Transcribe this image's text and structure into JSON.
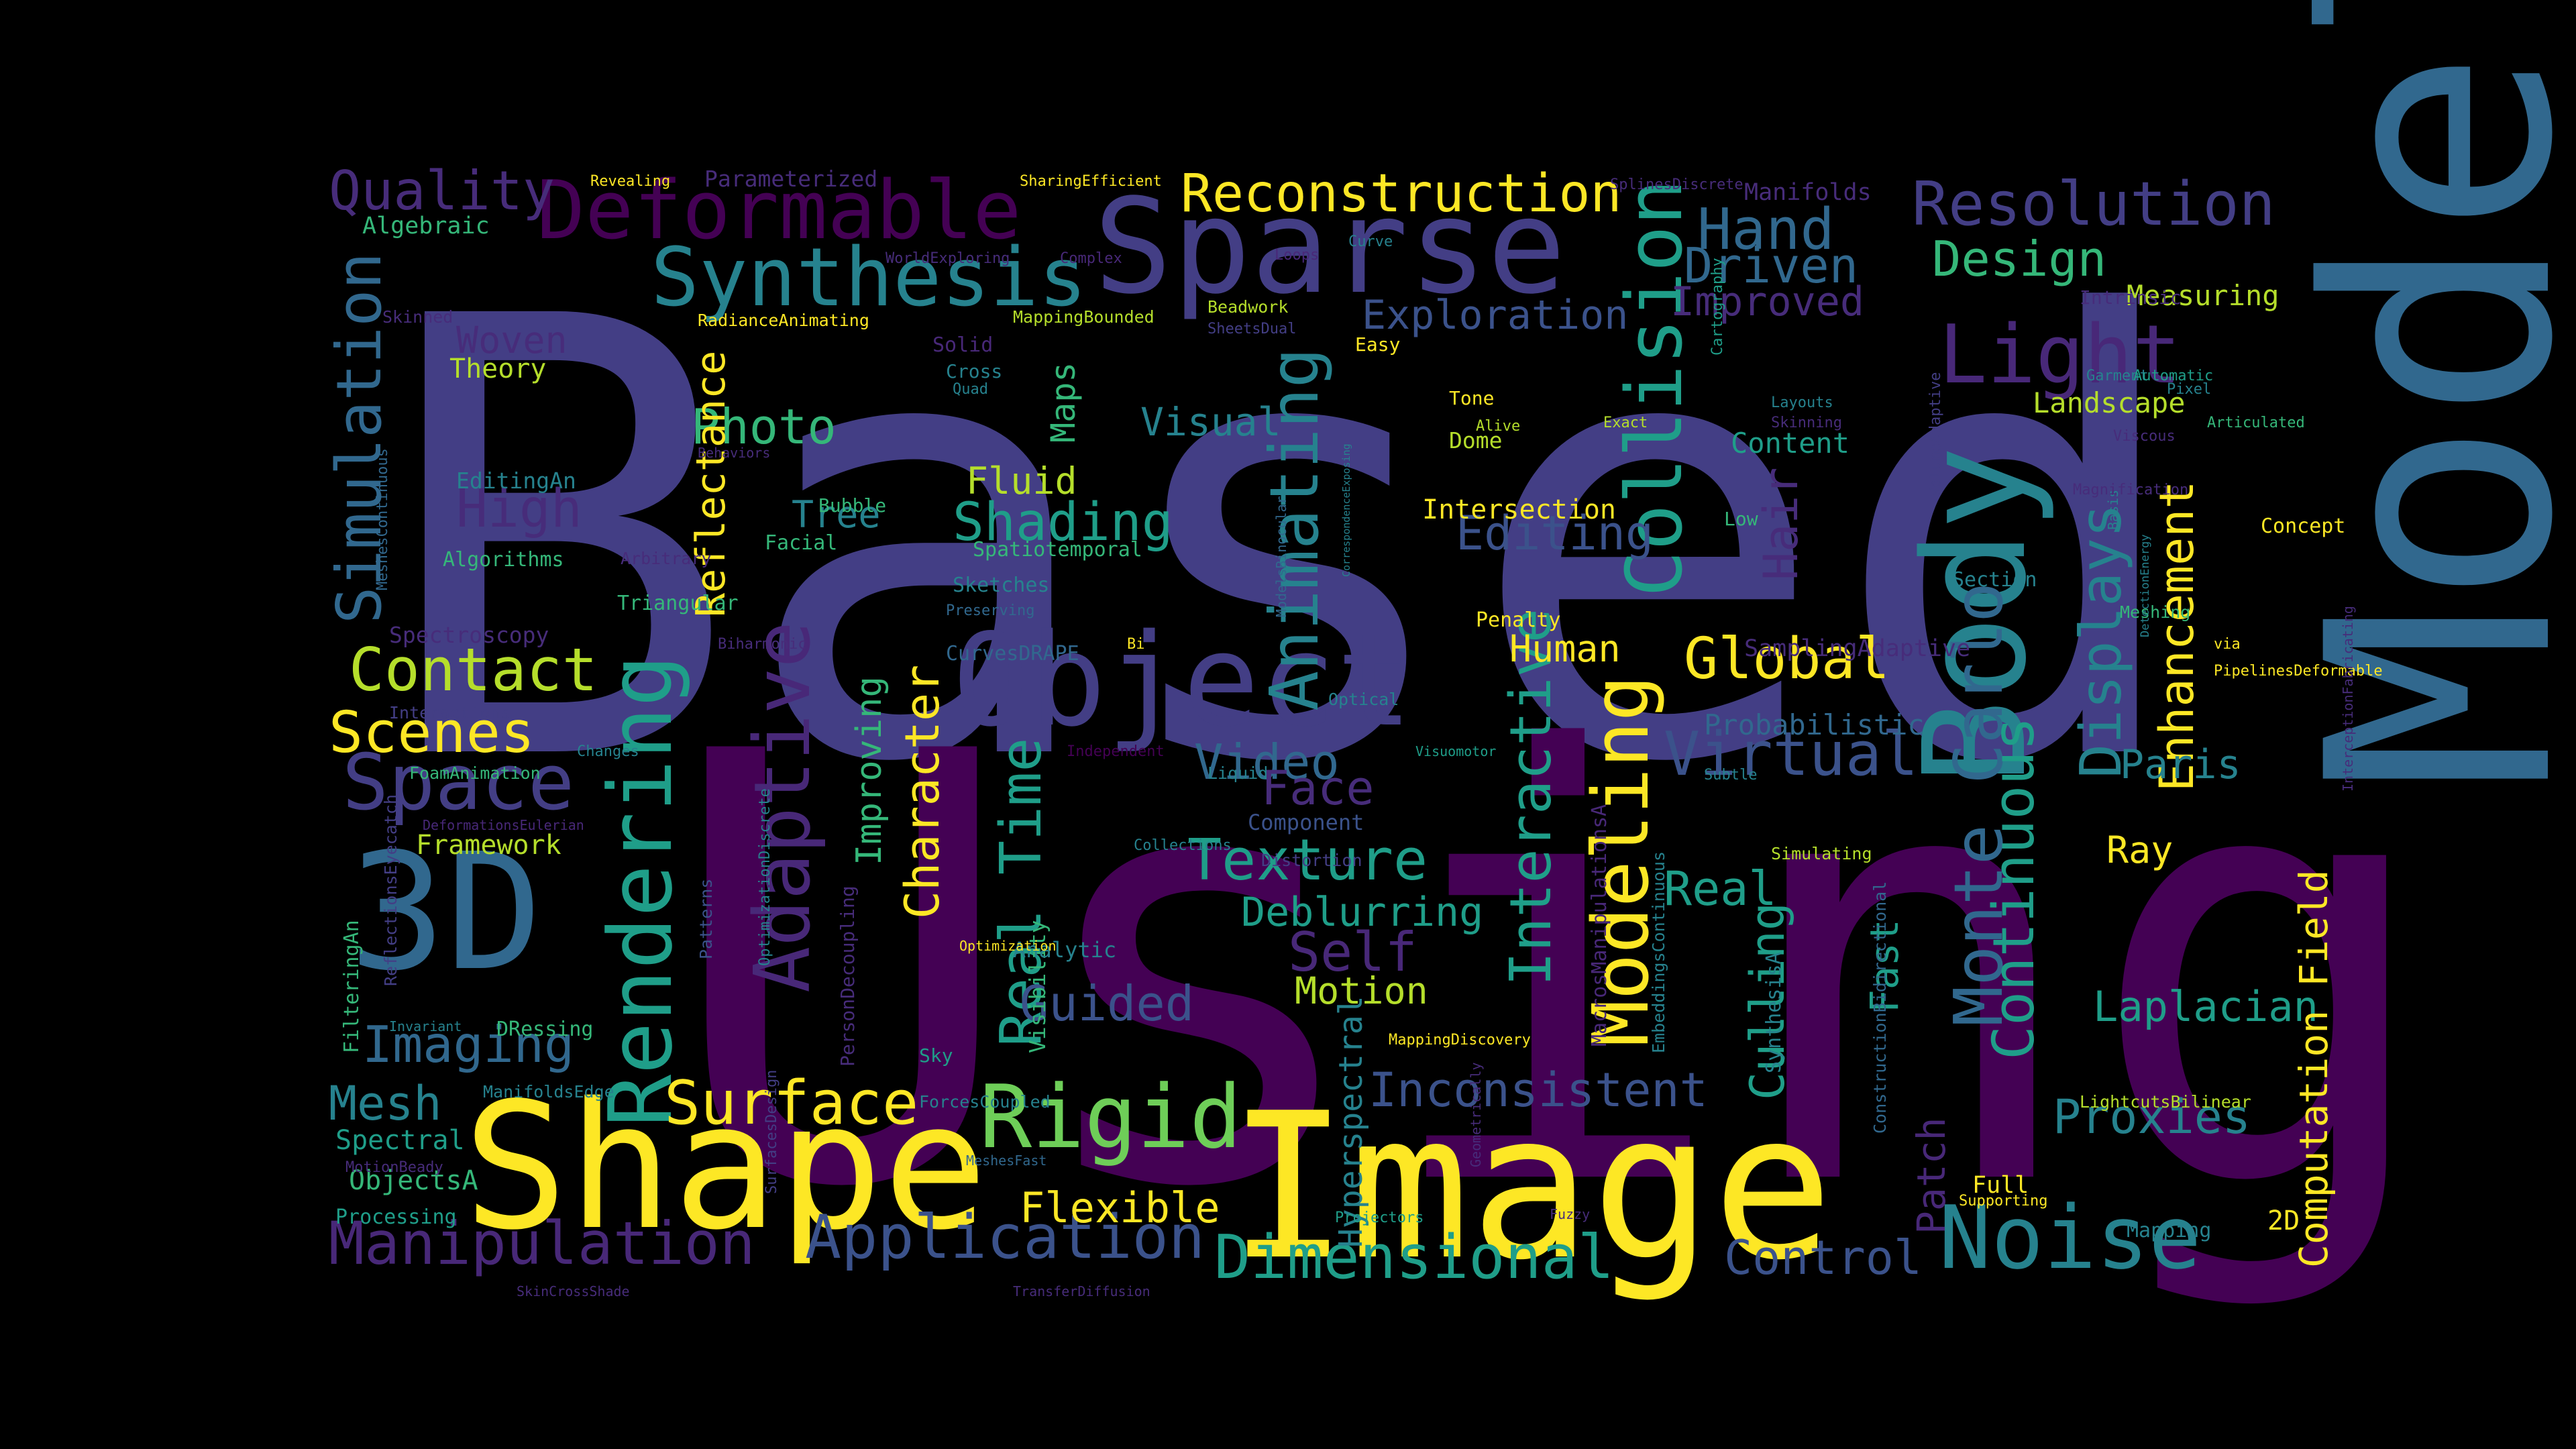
{
  "palette": {
    "background": "#000000",
    "indigo": "#433e85",
    "deep_purple": "#3b0f70",
    "dark_purple": "#440154",
    "purple": "#482878",
    "violet": "#472c7a",
    "blue": "#3b528b",
    "steel": "#31688e",
    "teal": "#26828e",
    "teal_green": "#1f9e89",
    "green": "#35b779",
    "lime": "#6ece58",
    "yellow_green": "#b5de2b",
    "yellow": "#fde725"
  },
  "words": [
    {
      "text": "Based"
    },
    {
      "text": "Using"
    },
    {
      "text": "Model"
    },
    {
      "text": "Image"
    },
    {
      "text": "Shape"
    },
    {
      "text": "Sparse"
    },
    {
      "text": "Object"
    },
    {
      "text": "3D"
    },
    {
      "text": "Deformable"
    },
    {
      "text": "Body"
    },
    {
      "text": "Synthesis"
    },
    {
      "text": "Reconstruction"
    },
    {
      "text": "Resolution"
    },
    {
      "text": "Light"
    },
    {
      "text": "Rendering"
    },
    {
      "text": "Modeling"
    },
    {
      "text": "Rigid"
    },
    {
      "text": "Noise"
    },
    {
      "text": "Space"
    },
    {
      "text": "Adaptive"
    },
    {
      "text": "Collision"
    },
    {
      "text": "Animating"
    },
    {
      "text": "Monte Carlo"
    },
    {
      "text": "Simulation"
    },
    {
      "text": "Manipulation"
    },
    {
      "text": "Application"
    },
    {
      "text": "Dimensional"
    },
    {
      "text": "Surface"
    },
    {
      "text": "Contact"
    },
    {
      "text": "Scenes"
    },
    {
      "text": "Texture"
    },
    {
      "text": "Virtual"
    },
    {
      "text": "Global"
    },
    {
      "text": "Real Time"
    },
    {
      "text": "Interactive"
    },
    {
      "text": "Displays"
    },
    {
      "text": "Continuous"
    },
    {
      "text": "Hand"
    },
    {
      "text": "Driven"
    },
    {
      "text": "Design"
    },
    {
      "text": "Quality"
    },
    {
      "text": "Photo"
    },
    {
      "text": "Shading"
    },
    {
      "text": "High"
    },
    {
      "text": "Imaging"
    },
    {
      "text": "Mesh"
    },
    {
      "text": "Video"
    },
    {
      "text": "Self"
    },
    {
      "text": "Face"
    },
    {
      "text": "Guided"
    },
    {
      "text": "Inconsistent"
    },
    {
      "text": "Proxies"
    },
    {
      "text": "Control"
    },
    {
      "text": "Character"
    },
    {
      "text": "Editing"
    },
    {
      "text": "Exploration"
    },
    {
      "text": "Improved"
    },
    {
      "text": "Real"
    },
    {
      "text": "Culling"
    },
    {
      "text": "Enhancement"
    },
    {
      "text": "Hair"
    },
    {
      "text": "Paris"
    },
    {
      "text": "Laplacian"
    },
    {
      "text": "Flexible"
    },
    {
      "text": "Deblurring"
    },
    {
      "text": "Motion"
    },
    {
      "text": "Human"
    },
    {
      "text": "Fluid"
    },
    {
      "text": "Reflectance"
    },
    {
      "text": "Improving"
    },
    {
      "text": "Woven"
    },
    {
      "text": "Tree"
    },
    {
      "text": "Ray"
    },
    {
      "text": "Landscape"
    },
    {
      "text": "Measuring"
    },
    {
      "text": "Computation Field"
    },
    {
      "text": "Patch"
    },
    {
      "text": "Visual"
    },
    {
      "text": "Maps"
    },
    {
      "text": "Fast"
    },
    {
      "text": "Probabilistic"
    },
    {
      "text": "Content"
    },
    {
      "text": "Intersection"
    },
    {
      "text": "Hyperspectral"
    },
    {
      "text": "Framework"
    },
    {
      "text": "Spectral"
    },
    {
      "text": "ObjectsA"
    },
    {
      "text": "Processing"
    },
    {
      "text": "2D"
    },
    {
      "text": "Full"
    },
    {
      "text": "Theory"
    },
    {
      "text": "EditingAn"
    },
    {
      "text": "Algorithms"
    },
    {
      "text": "Algebraic"
    },
    {
      "text": "Parameterized"
    },
    {
      "text": "Dome"
    },
    {
      "text": "Penalty"
    },
    {
      "text": "Spatiotemporal"
    },
    {
      "text": "Facial"
    },
    {
      "text": "Triangular"
    },
    {
      "text": "Spectroscopy"
    },
    {
      "text": "Sketches"
    },
    {
      "text": "Visibility"
    },
    {
      "text": "Component"
    },
    {
      "text": "Analytic"
    },
    {
      "text": "Skinned"
    },
    {
      "text": "Bubble"
    },
    {
      "text": "Section"
    },
    {
      "text": "Concept"
    },
    {
      "text": "Low"
    },
    {
      "text": "Tone"
    },
    {
      "text": "Basis"
    },
    {
      "text": "Sky"
    },
    {
      "text": "Supporting"
    },
    {
      "text": "Mapping"
    },
    {
      "text": "Manifolds"
    },
    {
      "text": "Revealing"
    },
    {
      "text": "SharingEfficient"
    },
    {
      "text": "SplinesDiscrete"
    },
    {
      "text": "WorldExploring"
    },
    {
      "text": "Complex"
    },
    {
      "text": "Loops"
    },
    {
      "text": "Curve"
    },
    {
      "text": "RadianceAnimating"
    },
    {
      "text": "MappingBounded"
    },
    {
      "text": "Beadwork"
    },
    {
      "text": "SheetsDual"
    },
    {
      "text": "Easy"
    },
    {
      "text": "Solid"
    },
    {
      "text": "Cross"
    },
    {
      "text": "Quad"
    },
    {
      "text": "Intrinsic"
    },
    {
      "text": "Garment"
    },
    {
      "text": "Automatic"
    },
    {
      "text": "Pixel"
    },
    {
      "text": "Layouts"
    },
    {
      "text": "Skinning"
    },
    {
      "text": "Viscous"
    },
    {
      "text": "Articulated"
    },
    {
      "text": "Alive"
    },
    {
      "text": "Exact"
    },
    {
      "text": "Cartography"
    },
    {
      "text": "VolumeAdaptive"
    },
    {
      "text": "Magnification"
    },
    {
      "text": "Behaviors"
    },
    {
      "text": "MeshesContinuous"
    },
    {
      "text": "Arbitrary"
    },
    {
      "text": "Preserving"
    },
    {
      "text": "Biharmonic"
    },
    {
      "text": "CurvesDRAPE"
    },
    {
      "text": "ModelsBinocular"
    },
    {
      "text": "CorrespondenceExposing"
    },
    {
      "text": "Bi"
    },
    {
      "text": "SamplingAdaptive"
    },
    {
      "text": "Meshing"
    },
    {
      "text": "DetectionEnergy"
    },
    {
      "text": "via"
    },
    {
      "text": "PipelinesDeformable"
    },
    {
      "text": "InterceptionFabricating"
    },
    {
      "text": "Interactions"
    },
    {
      "text": "Changes"
    },
    {
      "text": "FoamAnimation"
    },
    {
      "text": "DeformationsEulerian"
    },
    {
      "text": "Optical"
    },
    {
      "text": "Independent"
    },
    {
      "text": "Liquid"
    },
    {
      "text": "Visuomotor"
    },
    {
      "text": "Subtle"
    },
    {
      "text": "MacrosManipulationsA"
    },
    {
      "text": "EmbeddingsContinuous"
    },
    {
      "text": "OptimizationDiscrete"
    },
    {
      "text": "Patterns"
    },
    {
      "text": "PersonDecoupling"
    },
    {
      "text": "Collections"
    },
    {
      "text": "Distortion"
    },
    {
      "text": "Simulating"
    },
    {
      "text": "SynthesisA"
    },
    {
      "text": "FilteringAn"
    },
    {
      "text": "ReflectionsEyecatch"
    },
    {
      "text": "Invariant"
    },
    {
      "text": "DRessing"
    },
    {
      "text": "Optimization"
    },
    {
      "text": "MappingDiscovery"
    },
    {
      "text": "ManifoldsEdge"
    },
    {
      "text": "ForcesCoupled"
    },
    {
      "text": "ConstructionBidirectional"
    },
    {
      "text": "LightcutsBilinear"
    },
    {
      "text": "MotionBeady"
    },
    {
      "text": "SurfacesDesign"
    },
    {
      "text": "MeshesFast"
    },
    {
      "text": "Geometrically"
    },
    {
      "text": "Fuzzy"
    },
    {
      "text": "Projectors"
    },
    {
      "text": "SkinCrossShade"
    },
    {
      "text": "TransferDiffusion"
    },
    {
      "text": "Coordination"
    }
  ]
}
